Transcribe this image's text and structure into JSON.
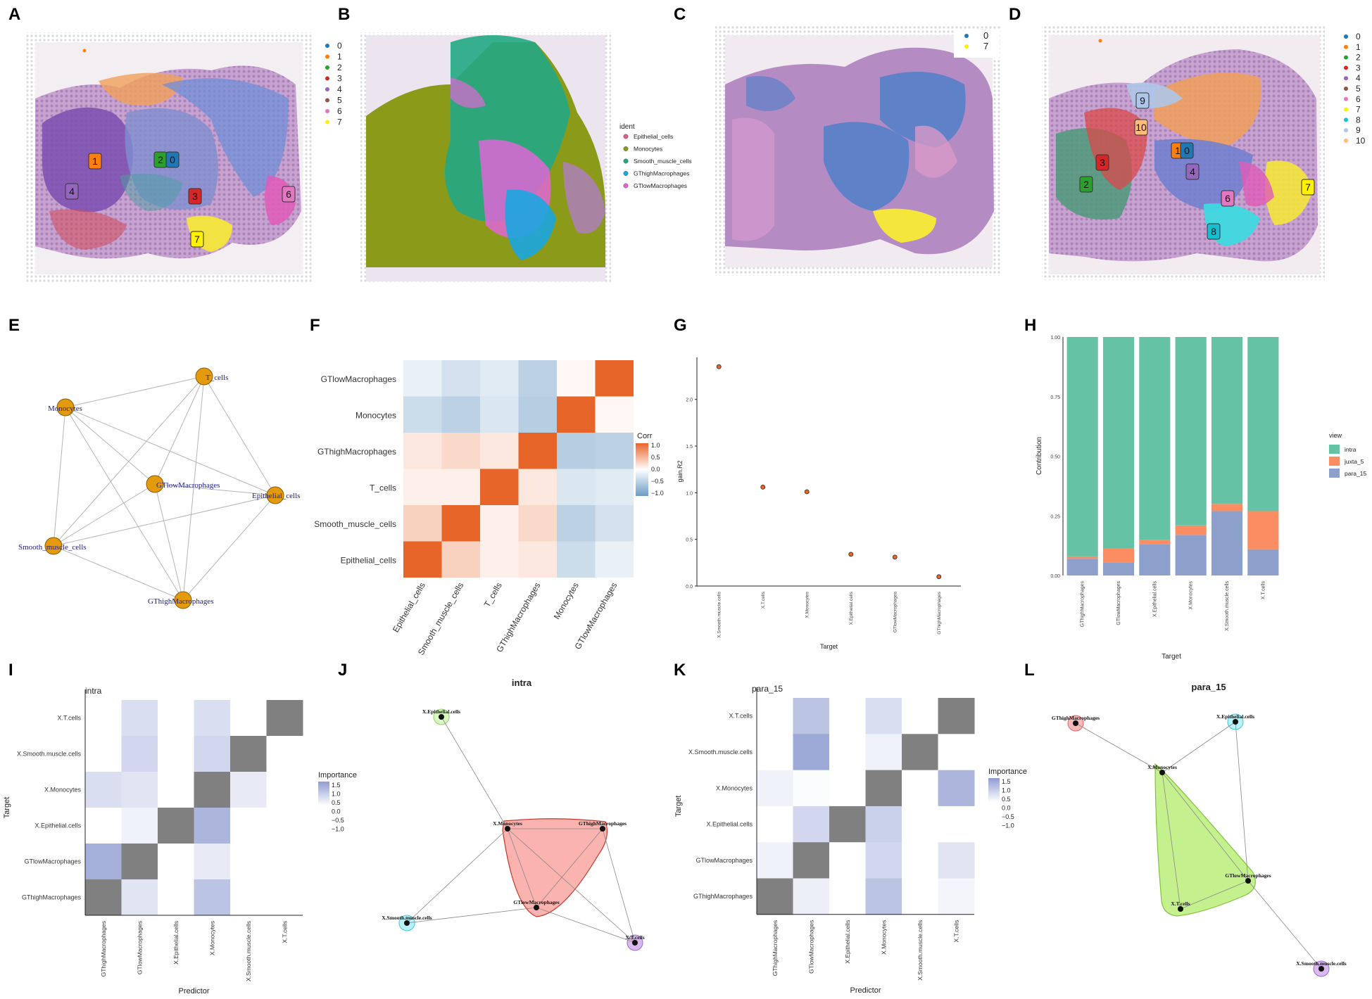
{
  "panel_letters": [
    "A",
    "B",
    "C",
    "D",
    "E",
    "F",
    "G",
    "H",
    "I",
    "J",
    "K",
    "L"
  ],
  "colors": {
    "c0": "#1f77b4",
    "c1": "#ff7f0e",
    "c2": "#2ca02c",
    "c3": "#d62728",
    "c4": "#9467bd",
    "c5": "#8c564b",
    "c6": "#e377c2",
    "c7": "#fff200",
    "c8": "#17becf",
    "c9": "#aec7e8",
    "c10": "#ffbb78",
    "tissue": "#b58bc4",
    "heat_pos": "#e8652a",
    "heat_neg": "#6a9cc4",
    "imp": "#8e9cd1",
    "diag": "#808080",
    "intra": "#66c2a5",
    "juxta": "#fc8d62",
    "para": "#8da0cb",
    "node": "#e39a0c",
    "lbl": "#1b1b8c",
    "ident_epi": "#e25b8f",
    "ident_mono": "#8c9a1a",
    "ident_smc": "#22a884",
    "ident_gth": "#1aa6e0",
    "ident_gtl": "#e066d6"
  },
  "legend_A": {
    "items": [
      "0",
      "1",
      "2",
      "3",
      "4",
      "5",
      "6",
      "7"
    ]
  },
  "legend_B": {
    "title": "ident",
    "items": [
      "Epithelial_cells",
      "Monocytes",
      "Smooth_muscle_cells",
      "GThighMacrophages",
      "GTlowMacrophages"
    ]
  },
  "legend_C": {
    "items": [
      "0",
      "7"
    ]
  },
  "legend_D": {
    "items": [
      "0",
      "1",
      "2",
      "3",
      "4",
      "5",
      "6",
      "7",
      "8",
      "9",
      "10"
    ]
  },
  "cluster_boxes_A": [
    "1",
    "2",
    "0",
    "3",
    "4",
    "6",
    "7"
  ],
  "cluster_boxes_D": [
    "9",
    "10",
    "3",
    "1",
    "0",
    "4",
    "2",
    "6",
    "7",
    "8"
  ],
  "panel_E": {
    "nodes": [
      "T_cells",
      "Monocytes",
      "GTlowMacrophages",
      "Epithelial_cells",
      "Smooth_muscle_cells",
      "GThighMacrophages"
    ]
  },
  "chart_data": [
    {
      "panel": "F",
      "type": "heatmap",
      "legend_title": "Corr",
      "rows": [
        "GTlowMacrophages",
        "Monocytes",
        "GThighMacrophages",
        "T_cells",
        "Smooth_muscle_cells",
        "Epithelial_cells"
      ],
      "cols": [
        "Epithelial_cells",
        "Smooth_muscle_cells",
        "T_cells",
        "GThighMacrophages",
        "Monocytes",
        "GTlowMacrophages"
      ],
      "values": [
        [
          -0.15,
          -0.3,
          -0.2,
          -0.45,
          0.05,
          1.0
        ],
        [
          -0.35,
          -0.45,
          -0.25,
          -0.5,
          1.0,
          0.05
        ],
        [
          0.15,
          0.25,
          0.15,
          1.0,
          -0.5,
          -0.45
        ],
        [
          0.1,
          0.1,
          1.0,
          0.15,
          -0.25,
          -0.2
        ],
        [
          0.3,
          1.0,
          0.1,
          0.25,
          -0.45,
          -0.3
        ],
        [
          1.0,
          0.3,
          0.1,
          0.15,
          -0.35,
          -0.15
        ]
      ],
      "scale_ticks": [
        "1.0",
        "0.5",
        "0.0",
        "−0.5",
        "−1.0"
      ],
      "zlim": [
        -1,
        1
      ]
    },
    {
      "panel": "G",
      "type": "scatter",
      "xlabel": "Target",
      "ylabel": "gain.R2",
      "categories": [
        "X.Smooth.muscle.cells",
        "X.T.cells",
        "X.Monocytes",
        "X.Epithelial.cells",
        "GTlowMacrophages",
        "GThighMacrophages"
      ],
      "values": [
        2.35,
        1.06,
        1.01,
        0.34,
        0.31,
        0.1
      ],
      "ylim": [
        0,
        2.45
      ],
      "yticks": [
        "0.0",
        "0.5",
        "1.0",
        "1.5",
        "2.0"
      ]
    },
    {
      "panel": "H",
      "type": "bar",
      "xlabel": "Target",
      "ylabel": "Contribution",
      "legend_title": "view",
      "categories": [
        "GThighMacrophages",
        "GTlowMacrophages",
        "X.Epithelial.cells",
        "X.Monocytes",
        "X.Smooth.muscle.cells",
        "X.T.cells"
      ],
      "series": [
        {
          "name": "intra",
          "values": [
            0.92,
            0.885,
            0.85,
            0.79,
            0.7,
            0.73
          ]
        },
        {
          "name": "juxta_5",
          "values": [
            0.01,
            0.06,
            0.02,
            0.04,
            0.03,
            0.16
          ]
        },
        {
          "name": "para_15",
          "values": [
            0.07,
            0.055,
            0.13,
            0.17,
            0.27,
            0.11
          ]
        }
      ],
      "ylim": [
        0,
        1
      ],
      "yticks": [
        "0.00",
        "0.25",
        "0.50",
        "0.75",
        "1.00"
      ]
    },
    {
      "panel": "I",
      "type": "heatmap",
      "title": "intra",
      "xlabel": "Predictor",
      "ylabel": "Target",
      "legend_title": "Importance",
      "rows": [
        "X.T.cells",
        "X.Smooth.muscle.cells",
        "X.Monocytes",
        "X.Epithelial.cells",
        "GTlowMacrophages",
        "GThighMacrophages"
      ],
      "cols": [
        "GThighMacrophages",
        "GTlowMacrophages",
        "X.Epithelial.cells",
        "X.Monocytes",
        "X.Smooth.muscle.cells",
        "X.T.cells"
      ],
      "values": [
        [
          0,
          0.5,
          0,
          0.5,
          0,
          null
        ],
        [
          0,
          0.6,
          0,
          0.6,
          null,
          0
        ],
        [
          0.5,
          0.4,
          0,
          null,
          0.3,
          0
        ],
        [
          0,
          0.2,
          null,
          1.1,
          0,
          0
        ],
        [
          1.2,
          null,
          0,
          0.3,
          0,
          0
        ],
        [
          null,
          0.4,
          0,
          0.9,
          0,
          0
        ]
      ],
      "scale_ticks": [
        "1.5",
        "1.0",
        "0.5",
        "0.0",
        "−0.5",
        "−1.0"
      ]
    },
    {
      "panel": "K",
      "type": "heatmap",
      "title": "para_15",
      "xlabel": "Predictor",
      "ylabel": "Target",
      "legend_title": "Importance",
      "rows": [
        "X.T.cells",
        "X.Smooth.muscle.cells",
        "X.Monocytes",
        "X.Epithelial.cells",
        "GTlowMacrophages",
        "GThighMacrophages"
      ],
      "cols": [
        "GThighMacrophages",
        "GTlowMacrophages",
        "X.Epithelial.cells",
        "X.Monocytes",
        "X.Smooth.muscle.cells",
        "X.T.cells"
      ],
      "values": [
        [
          0,
          0.9,
          0,
          0.5,
          0,
          null
        ],
        [
          0,
          1.3,
          0,
          0.2,
          null,
          0
        ],
        [
          0.2,
          0.05,
          0,
          null,
          0,
          1.1
        ],
        [
          0,
          0.6,
          null,
          0.7,
          0,
          0
        ],
        [
          0.2,
          null,
          0,
          0.6,
          0,
          0.4
        ],
        [
          null,
          0.25,
          0,
          0.9,
          0,
          0.15
        ]
      ],
      "scale_ticks": [
        "1.5",
        "1.0",
        "0.5",
        "0.0",
        "−0.5",
        "−1.0"
      ]
    }
  ],
  "panel_J": {
    "title": "intra",
    "nodes": [
      "X.Epithelial.cells",
      "X.Monocytes",
      "GThighMacrophages",
      "GTlowMacrophages",
      "X.Smooth.muscle.cells",
      "X.T.cells"
    ]
  },
  "panel_L": {
    "title": "para_15",
    "nodes": [
      "GThighMacrophages",
      "X.Epithelial.cells",
      "X.Monocytes",
      "GTlowMacrophages",
      "X.T.cells",
      "X.Smooth.muscle.cells"
    ]
  }
}
